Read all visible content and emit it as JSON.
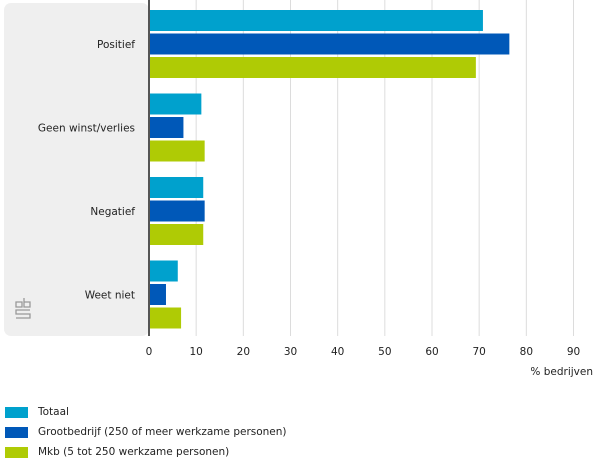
{
  "chart_data": {
    "type": "bar",
    "orientation": "horizontal",
    "categories": [
      "Positief",
      "Geen winst/verlies",
      "Negatief",
      "Weet niet"
    ],
    "series": [
      {
        "name": "Totaal",
        "color": "#00a1cd",
        "values": [
          70.8,
          11.1,
          11.5,
          6.1
        ]
      },
      {
        "name": "Grootbedrijf (250 of meer werkzame personen)",
        "color": "#0058b8",
        "values": [
          76.4,
          7.3,
          11.8,
          3.6
        ]
      },
      {
        "name": "Mkb (5 tot 250 werkzame personen)",
        "color": "#afcb05",
        "values": [
          69.3,
          11.8,
          11.5,
          6.8
        ]
      }
    ],
    "xlabel": "% bedrijven",
    "xlim": [
      0,
      90
    ],
    "xticks": [
      0,
      10,
      20,
      30,
      40,
      50,
      60,
      70,
      80,
      90
    ],
    "grid": true,
    "legend": "bottom-left"
  }
}
